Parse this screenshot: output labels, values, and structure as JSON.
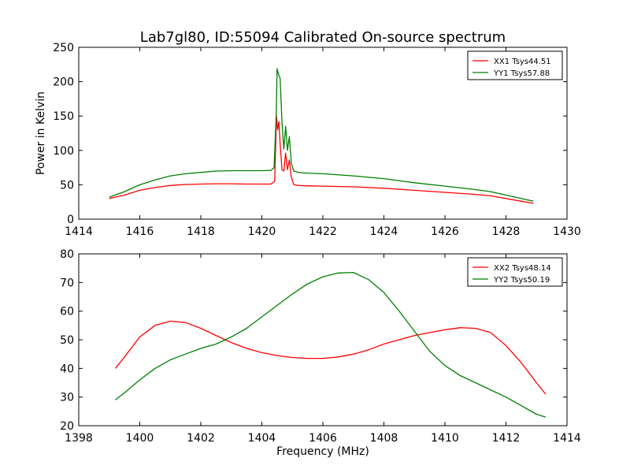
{
  "figure": {
    "title": "Lab7gl80, ID:55094 Calibrated On-source spectrum",
    "xlabel": "Frequency (MHz)",
    "ylabel": "Power in Kelvin"
  },
  "colors": {
    "red": "#ff0000",
    "green": "#008000",
    "axis": "#000000"
  },
  "chart_data": [
    {
      "type": "line",
      "xlim": [
        1414,
        1430
      ],
      "ylim": [
        0,
        250
      ],
      "x_ticks": [
        1414,
        1416,
        1418,
        1420,
        1422,
        1424,
        1426,
        1428,
        1430
      ],
      "y_ticks": [
        0,
        50,
        100,
        150,
        200,
        250
      ],
      "ylabel": "Power in Kelvin",
      "xlabel": "",
      "grid": false,
      "legend_position": "top-right",
      "series": [
        {
          "name": "XX1 Tsys44.51",
          "color": "#ff0000",
          "points": [
            [
              1415.0,
              30
            ],
            [
              1415.5,
              35
            ],
            [
              1416.0,
              42
            ],
            [
              1416.5,
              46
            ],
            [
              1417.0,
              49
            ],
            [
              1417.5,
              50.5
            ],
            [
              1418.0,
              51
            ],
            [
              1418.5,
              51.5
            ],
            [
              1419.0,
              51.5
            ],
            [
              1419.5,
              51
            ],
            [
              1420.0,
              51
            ],
            [
              1420.3,
              51
            ],
            [
              1420.42,
              55
            ],
            [
              1420.48,
              150
            ],
            [
              1420.52,
              130
            ],
            [
              1420.56,
              142
            ],
            [
              1420.6,
              110
            ],
            [
              1420.66,
              72
            ],
            [
              1420.72,
              70
            ],
            [
              1420.78,
              96
            ],
            [
              1420.84,
              72
            ],
            [
              1420.9,
              86
            ],
            [
              1420.96,
              62
            ],
            [
              1421.05,
              50
            ],
            [
              1421.2,
              49
            ],
            [
              1421.5,
              48.5
            ],
            [
              1422.0,
              48
            ],
            [
              1423.0,
              47
            ],
            [
              1424.0,
              45
            ],
            [
              1425.0,
              42
            ],
            [
              1426.0,
              39
            ],
            [
              1427.0,
              36
            ],
            [
              1427.5,
              34
            ],
            [
              1428.0,
              30
            ],
            [
              1428.5,
              26
            ],
            [
              1428.9,
              23
            ]
          ]
        },
        {
          "name": "YY1 Tsys57.88",
          "color": "#008000",
          "points": [
            [
              1415.0,
              32
            ],
            [
              1415.5,
              40
            ],
            [
              1416.0,
              50
            ],
            [
              1416.5,
              57
            ],
            [
              1417.0,
              63
            ],
            [
              1417.5,
              66
            ],
            [
              1418.0,
              68
            ],
            [
              1418.5,
              70
            ],
            [
              1419.0,
              70.5
            ],
            [
              1419.5,
              70.5
            ],
            [
              1420.0,
              70.5
            ],
            [
              1420.3,
              71
            ],
            [
              1420.4,
              75
            ],
            [
              1420.47,
              150
            ],
            [
              1420.5,
              219
            ],
            [
              1420.55,
              210
            ],
            [
              1420.6,
              205
            ],
            [
              1420.66,
              140
            ],
            [
              1420.72,
              102
            ],
            [
              1420.78,
              135
            ],
            [
              1420.84,
              100
            ],
            [
              1420.9,
              120
            ],
            [
              1420.97,
              80
            ],
            [
              1421.05,
              70
            ],
            [
              1421.2,
              68
            ],
            [
              1421.5,
              67
            ],
            [
              1422.0,
              66
            ],
            [
              1423.0,
              63
            ],
            [
              1424.0,
              59
            ],
            [
              1425.0,
              53
            ],
            [
              1426.0,
              48
            ],
            [
              1427.0,
              43
            ],
            [
              1427.5,
              40
            ],
            [
              1428.0,
              35
            ],
            [
              1428.5,
              30
            ],
            [
              1428.9,
              26
            ]
          ]
        }
      ]
    },
    {
      "type": "line",
      "xlim": [
        1398,
        1414
      ],
      "ylim": [
        20,
        80
      ],
      "x_ticks": [
        1398,
        1400,
        1402,
        1404,
        1406,
        1408,
        1410,
        1412,
        1414
      ],
      "y_ticks": [
        20,
        30,
        40,
        50,
        60,
        70,
        80
      ],
      "xlabel": "Frequency (MHz)",
      "ylabel": "",
      "grid": false,
      "legend_position": "top-right",
      "series": [
        {
          "name": "XX2 Tsys48.14",
          "color": "#ff0000",
          "points": [
            [
              1399.2,
              40
            ],
            [
              1399.5,
              44
            ],
            [
              1400.0,
              51
            ],
            [
              1400.5,
              55
            ],
            [
              1401.0,
              56.5
            ],
            [
              1401.5,
              56
            ],
            [
              1402.0,
              54
            ],
            [
              1402.5,
              51.5
            ],
            [
              1403.0,
              49
            ],
            [
              1403.5,
              47
            ],
            [
              1404.0,
              45.5
            ],
            [
              1404.5,
              44.5
            ],
            [
              1405.0,
              43.8
            ],
            [
              1405.5,
              43.5
            ],
            [
              1406.0,
              43.5
            ],
            [
              1406.5,
              44
            ],
            [
              1407.0,
              45
            ],
            [
              1407.5,
              46.5
            ],
            [
              1408.0,
              48.5
            ],
            [
              1408.5,
              50
            ],
            [
              1409.0,
              51.5
            ],
            [
              1409.5,
              52.5
            ],
            [
              1410.0,
              53.5
            ],
            [
              1410.5,
              54.2
            ],
            [
              1411.0,
              54
            ],
            [
              1411.5,
              52.5
            ],
            [
              1412.0,
              48
            ],
            [
              1412.5,
              42
            ],
            [
              1413.0,
              35
            ],
            [
              1413.3,
              31
            ]
          ]
        },
        {
          "name": "YY2 Tsys50.19",
          "color": "#008000",
          "points": [
            [
              1399.2,
              29
            ],
            [
              1399.5,
              31.5
            ],
            [
              1400.0,
              36
            ],
            [
              1400.5,
              40
            ],
            [
              1401.0,
              43
            ],
            [
              1401.5,
              45
            ],
            [
              1402.0,
              47
            ],
            [
              1402.5,
              48.5
            ],
            [
              1403.0,
              51
            ],
            [
              1403.5,
              54
            ],
            [
              1404.0,
              58
            ],
            [
              1404.5,
              62
            ],
            [
              1405.0,
              66
            ],
            [
              1405.5,
              69.5
            ],
            [
              1406.0,
              72
            ],
            [
              1406.5,
              73.3
            ],
            [
              1407.0,
              73.5
            ],
            [
              1407.5,
              71
            ],
            [
              1408.0,
              66.5
            ],
            [
              1408.5,
              60
            ],
            [
              1409.0,
              53
            ],
            [
              1409.5,
              46
            ],
            [
              1410.0,
              41
            ],
            [
              1410.5,
              37.5
            ],
            [
              1411.0,
              35
            ],
            [
              1411.5,
              32.5
            ],
            [
              1412.0,
              30
            ],
            [
              1412.5,
              27
            ],
            [
              1413.0,
              24
            ],
            [
              1413.3,
              23
            ]
          ]
        }
      ]
    }
  ]
}
